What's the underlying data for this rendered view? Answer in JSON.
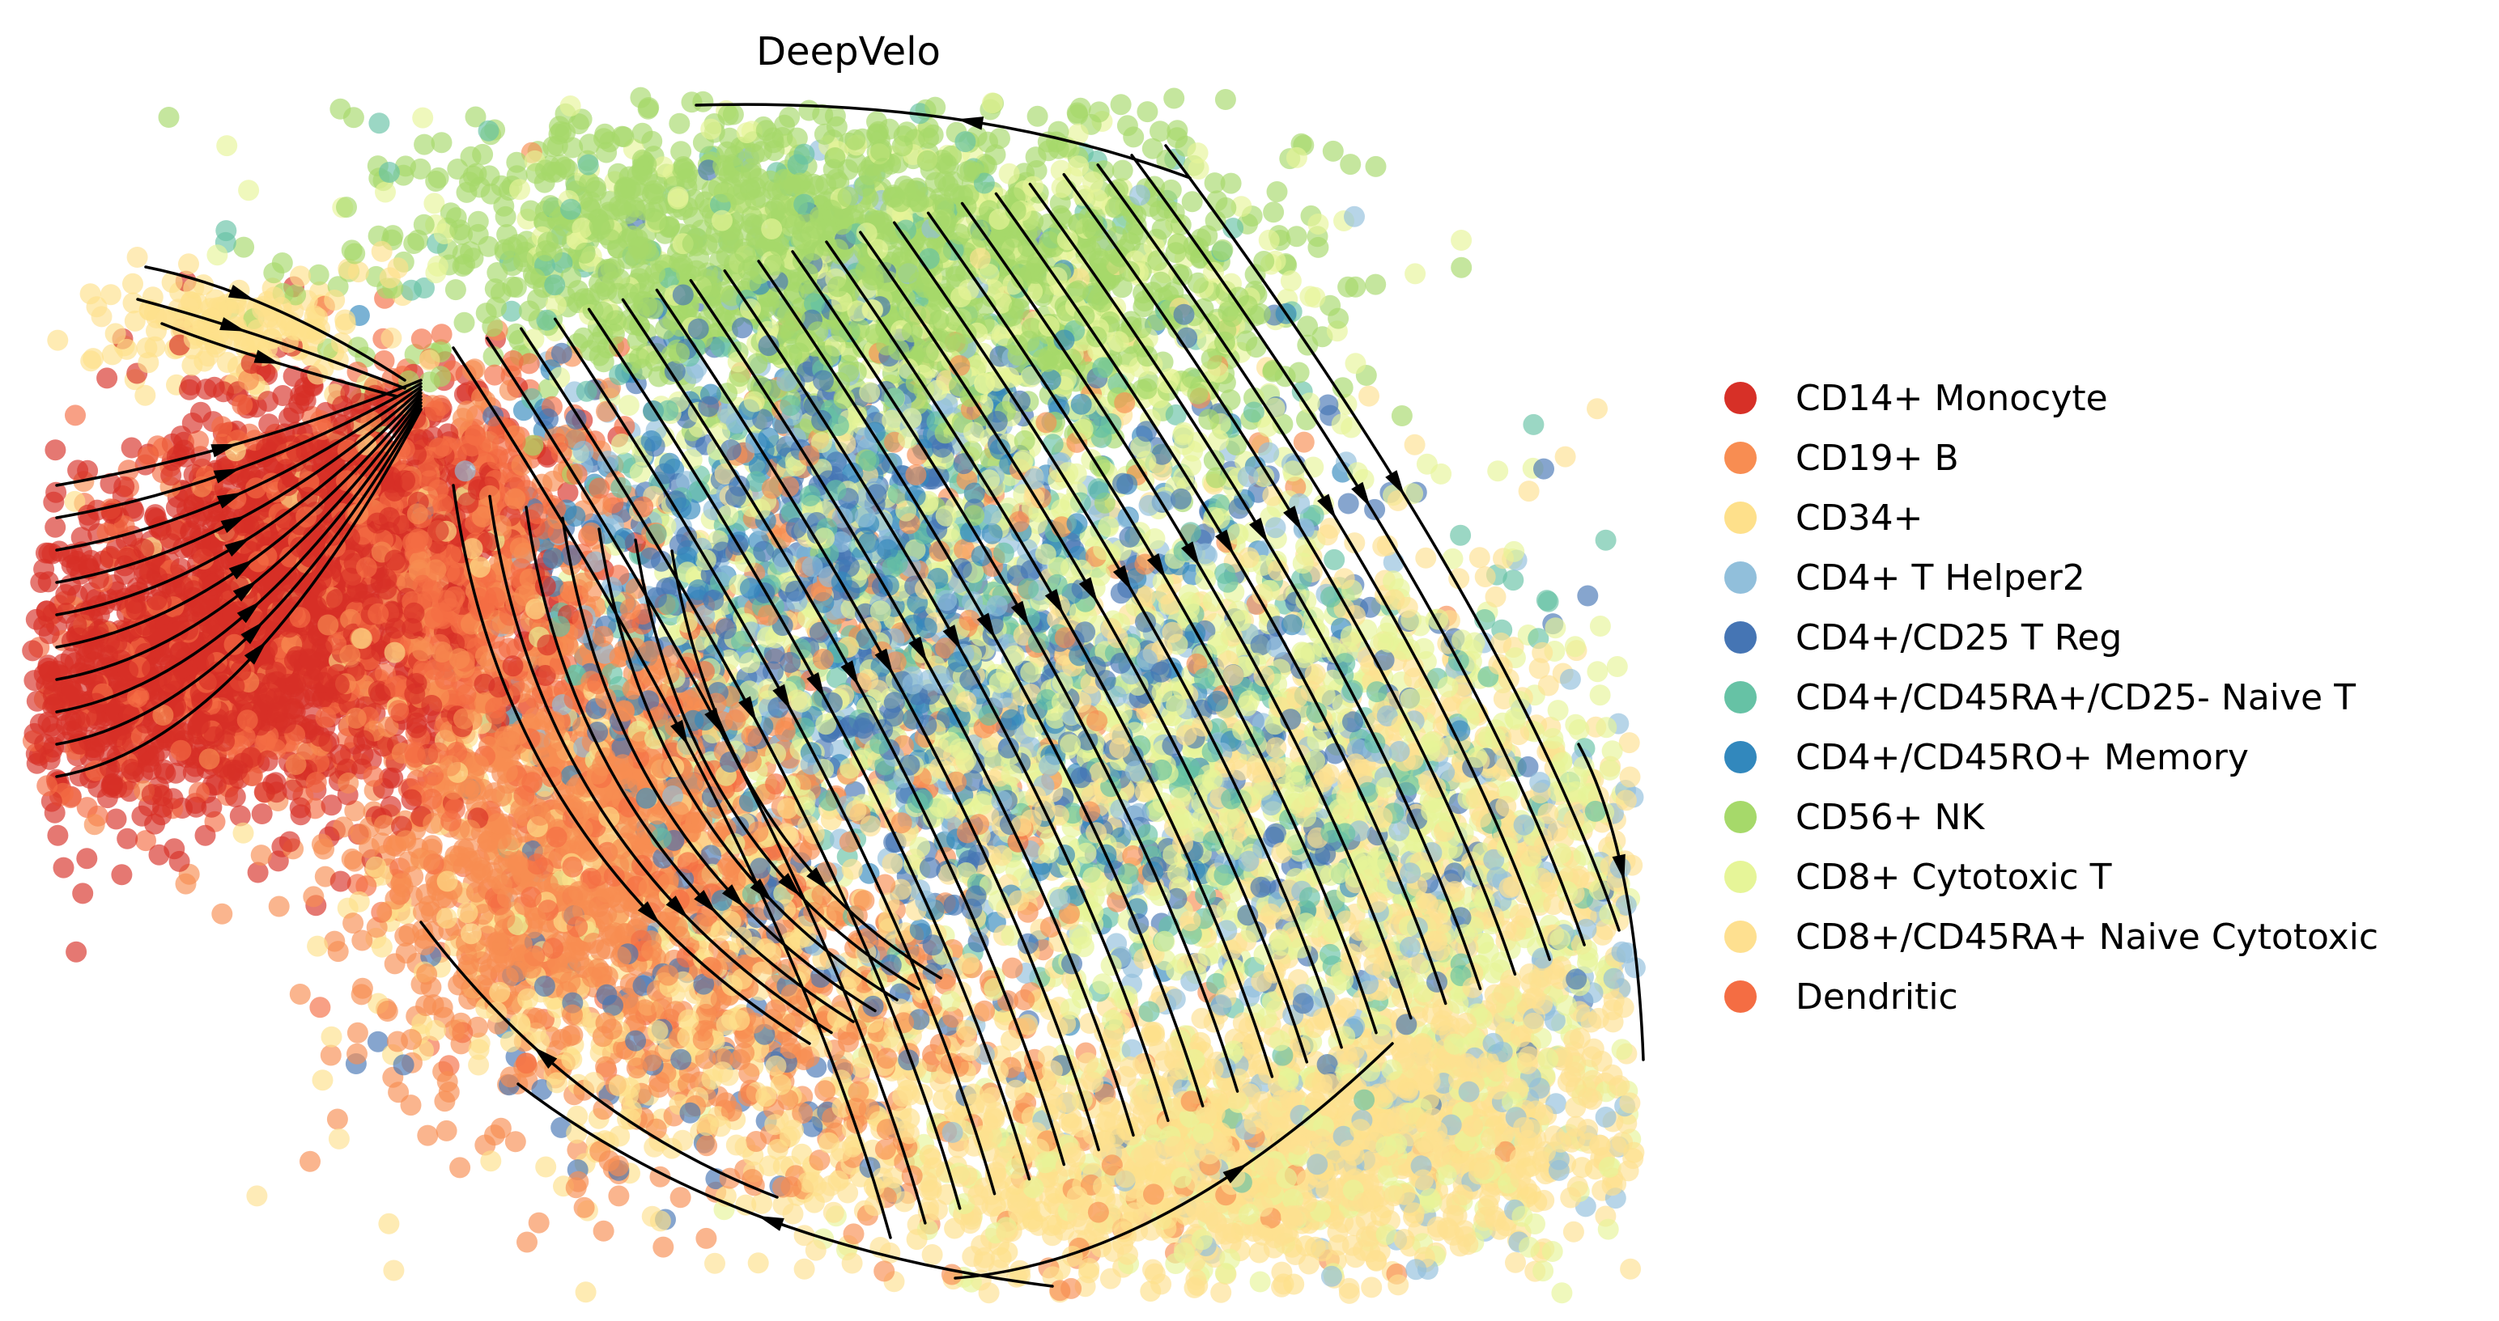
{
  "chart_data": {
    "type": "scatter",
    "title": "DeepVelo",
    "xlabel": "",
    "ylabel": "",
    "axes_visible": false,
    "grid": false,
    "overlay": "velocity streamlines with arrowheads",
    "legend_position": "right",
    "legend": [
      {
        "name": "CD14+ Monocyte",
        "color": "#d73027"
      },
      {
        "name": "CD19+ B",
        "color": "#f88d52"
      },
      {
        "name": "CD34+",
        "color": "#fee08b"
      },
      {
        "name": "CD4+ T Helper2",
        "color": "#91bfdb"
      },
      {
        "name": "CD4+/CD25 T Reg",
        "color": "#4575b4"
      },
      {
        "name": "CD4+/CD45RA+/CD25- Naive T",
        "color": "#66c2a5"
      },
      {
        "name": "CD4+/CD45RO+ Memory",
        "color": "#3288bd"
      },
      {
        "name": "CD56+ NK",
        "color": "#a6d96a"
      },
      {
        "name": "CD8+ Cytotoxic T",
        "color": "#e6f598"
      },
      {
        "name": "CD8+/CD45RA+ Naive Cytotoxic",
        "color": "#fee090"
      },
      {
        "name": "Dendritic",
        "color": "#f46d43"
      }
    ]
  }
}
